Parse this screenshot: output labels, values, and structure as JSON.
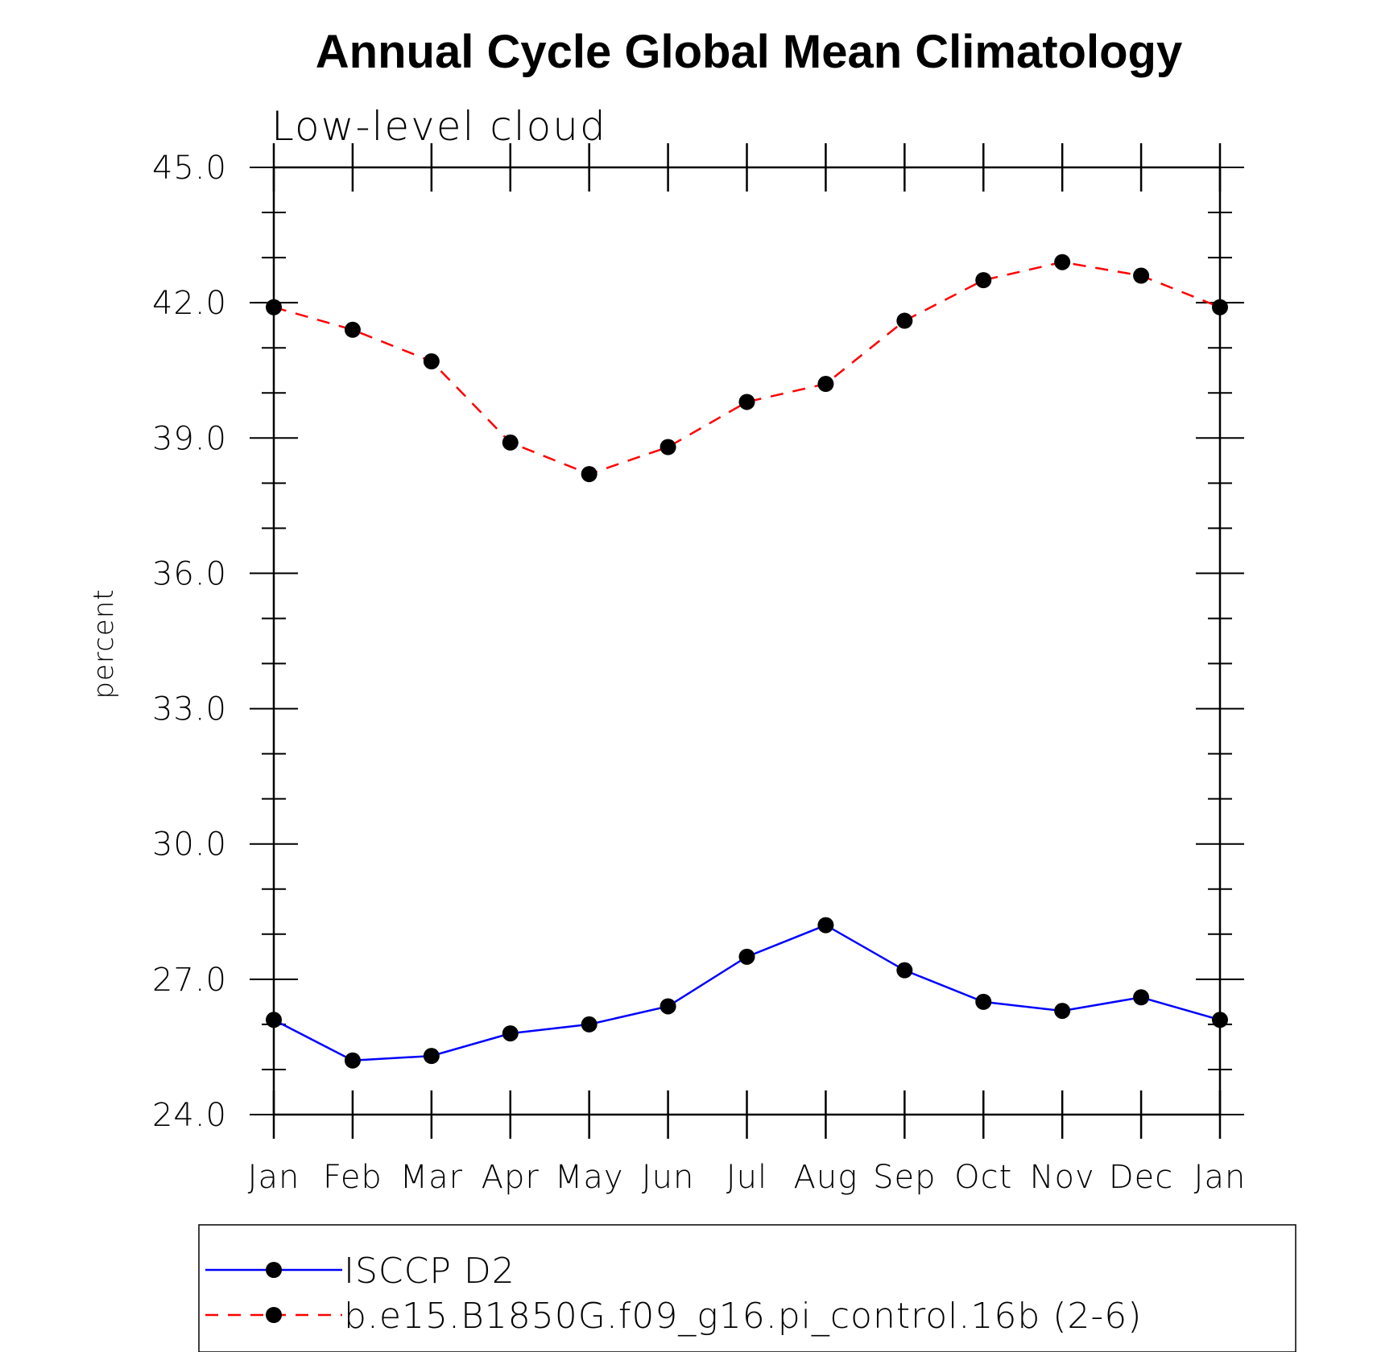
{
  "chart_data": {
    "type": "line",
    "title": "Annual Cycle Global Mean Climatology",
    "subtitle": "Low-level cloud",
    "ylabel": "percent",
    "xlabel": "",
    "categories": [
      "Jan",
      "Feb",
      "Mar",
      "Apr",
      "May",
      "Jun",
      "Jul",
      "Aug",
      "Sep",
      "Oct",
      "Nov",
      "Dec",
      "Jan"
    ],
    "ylim": [
      24.0,
      45.0
    ],
    "yticks": [
      "24.0",
      "27.0",
      "30.0",
      "33.0",
      "36.0",
      "39.0",
      "42.0",
      "45.0"
    ],
    "grid": false,
    "legend": "bottom",
    "series": [
      {
        "name": "ISCCP D2",
        "color": "#0000ff",
        "dash": "solid",
        "marker": "circle",
        "values": [
          26.1,
          25.2,
          25.3,
          25.8,
          26.0,
          26.4,
          27.5,
          28.2,
          27.2,
          26.5,
          26.3,
          26.6,
          26.1
        ]
      },
      {
        "name": "b.e15.B1850G.f09_g16.pi_control.16b (2-6)",
        "color": "#ff0000",
        "dash": "dashed",
        "marker": "circle",
        "values": [
          41.9,
          41.4,
          40.7,
          38.9,
          38.2,
          38.8,
          39.8,
          40.2,
          41.6,
          42.5,
          42.9,
          42.6,
          41.9
        ]
      }
    ]
  }
}
